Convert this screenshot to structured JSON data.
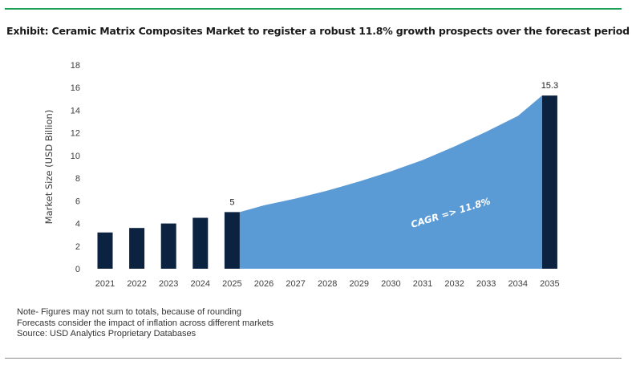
{
  "header": {
    "title": "Exhibit: Ceramic Matrix Composites Market to register a robust 11.8% growth prospects over the forecast period"
  },
  "chart_data": {
    "type": "bar",
    "categories": [
      "2021",
      "2022",
      "2023",
      "2024",
      "2025",
      "2026",
      "2027",
      "2028",
      "2029",
      "2030",
      "2031",
      "2032",
      "2033",
      "2034",
      "2035"
    ],
    "values": [
      3.2,
      3.6,
      4.0,
      4.5,
      5.0,
      null,
      null,
      null,
      null,
      null,
      null,
      null,
      null,
      null,
      15.3
    ],
    "data_labels": {
      "2025": "5",
      "2035": "15.3"
    },
    "area": {
      "x": [
        "2025",
        "2026",
        "2027",
        "2028",
        "2029",
        "2030",
        "2031",
        "2032",
        "2033",
        "2034",
        "2035"
      ],
      "values": [
        5.0,
        5.6,
        6.2,
        6.9,
        7.7,
        8.6,
        9.6,
        10.8,
        12.1,
        13.5,
        15.3
      ]
    },
    "annotation": "CAGR => 11.8%",
    "ylabel": "Market Size (USD Billion)",
    "xlabel": "",
    "ylim": [
      0,
      18
    ],
    "yticks": [
      0,
      2,
      4,
      6,
      8,
      10,
      12,
      14,
      16,
      18
    ],
    "grid": false,
    "colors": {
      "bar": "#0b2240",
      "area": "#5b9bd5",
      "annotation": "#ffffff"
    }
  },
  "notes": [
    "Note- Figures may not sum to totals, because of rounding",
    "Forecasts consider the impact of inflation across different markets",
    "Source: USD Analytics Proprietary Databases"
  ]
}
